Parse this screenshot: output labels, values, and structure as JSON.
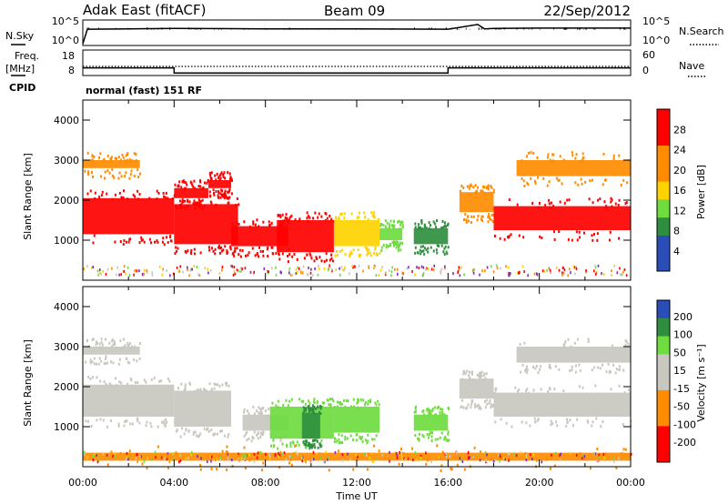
{
  "header": {
    "station": "Adak East (fitACF)",
    "beam": "Beam 09",
    "date": "22/Sep/2012"
  },
  "control_labels": {
    "nsky": "N.Sky",
    "nsearch": "N.Search",
    "freq_line1": "Freq.",
    "freq_line2": "[MHz]",
    "nave": "Nave",
    "cpid": "CPID",
    "cpid_value": "normal (fast) 151 RF",
    "left_top_tick": "10^5",
    "left_bottom_tick": "10^0",
    "right_top_tick": "10^5",
    "right_bottom_tick": "10^0",
    "freq_top_tick": "18",
    "freq_bottom_tick": "8",
    "nave_top_tick": "60",
    "nave_bottom_tick": "0"
  },
  "colors": {
    "red": "#ff0000",
    "orange": "#ff8c00",
    "yellow": "#ffd200",
    "green": "#6fdc3f",
    "darkgreen": "#2f8f3f",
    "blue": "#2a4db8",
    "gray": "#c8c8c0",
    "purple": "#7a2fb0"
  },
  "chart_data": [
    {
      "type": "line",
      "panel": "noise",
      "series": [
        {
          "name": "N.Sky",
          "x_hours": [
            0,
            0.2,
            4,
            8,
            12,
            16,
            17.3,
            17.6,
            18,
            20,
            24
          ],
          "values": [
            0,
            3.6,
            3.8,
            3.7,
            3.7,
            3.6,
            4.8,
            3.7,
            3.8,
            3.9,
            3.9
          ]
        },
        {
          "name": "N.Search"
        }
      ],
      "yscale": "log",
      "ylim_labels": [
        "10^0",
        "10^5"
      ]
    },
    {
      "type": "line",
      "panel": "frequency",
      "series": [
        {
          "name": "Freq.",
          "x_hours": [
            0,
            4,
            4,
            16,
            16,
            24
          ],
          "values": [
            12,
            12,
            8.5,
            8.5,
            12,
            12
          ]
        },
        {
          "name": "Nave"
        }
      ],
      "ylim_freq": [
        8,
        18
      ],
      "ylim_nave": [
        0,
        60
      ]
    },
    {
      "type": "heatmap",
      "panel": "power",
      "ylabel": "Slant Range [km]",
      "xlabel": "Time UT",
      "xlim": [
        0,
        24
      ],
      "ylim": [
        0,
        4500
      ],
      "yticks": [
        1000,
        2000,
        3000,
        4000
      ],
      "xtick_labels": [
        "00:00",
        "04:00",
        "08:00",
        "12:00",
        "16:00",
        "20:00",
        "00:00"
      ],
      "colorbar_label": "Power [dB]",
      "colorbar_ticks": [
        4,
        8,
        12,
        16,
        20,
        24,
        28
      ],
      "clim": [
        0,
        32
      ],
      "regions": [
        {
          "t0": 0,
          "t1": 4,
          "r0": 1150,
          "r1": 2050,
          "value": 30
        },
        {
          "t0": 4,
          "t1": 6.8,
          "r0": 900,
          "r1": 1900,
          "value": 29
        },
        {
          "t0": 6.5,
          "t1": 9,
          "r0": 850,
          "r1": 1350,
          "value": 28
        },
        {
          "t0": 8.5,
          "t1": 11,
          "r0": 700,
          "r1": 1500,
          "value": 27
        },
        {
          "t0": 11,
          "t1": 13,
          "r0": 850,
          "r1": 1500,
          "value": 18
        },
        {
          "t0": 13,
          "t1": 14,
          "r0": 1000,
          "r1": 1300,
          "value": 14
        },
        {
          "t0": 14.5,
          "t1": 16,
          "r0": 900,
          "r1": 1300,
          "value": 10
        },
        {
          "t0": 16.5,
          "t1": 18,
          "r0": 1700,
          "r1": 2200,
          "value": 22
        },
        {
          "t0": 18,
          "t1": 24,
          "r0": 1250,
          "r1": 1850,
          "value": 29
        },
        {
          "t0": 0,
          "t1": 2.5,
          "r0": 2800,
          "r1": 3000,
          "value": 24
        },
        {
          "t0": 4,
          "t1": 5.5,
          "r0": 2050,
          "r1": 2300,
          "value": 29
        },
        {
          "t0": 5.5,
          "t1": 6.5,
          "r0": 2300,
          "r1": 2500,
          "value": 27
        },
        {
          "t0": 19,
          "t1": 24,
          "r0": 2600,
          "r1": 3000,
          "value": 24
        }
      ]
    },
    {
      "type": "heatmap",
      "panel": "velocity",
      "ylabel": "Slant Range [km]",
      "xlabel": "Time UT",
      "xlim": [
        0,
        24
      ],
      "ylim": [
        0,
        4500
      ],
      "yticks": [
        1000,
        2000,
        3000,
        4000
      ],
      "xtick_labels": [
        "00:00",
        "04:00",
        "08:00",
        "12:00",
        "16:00",
        "20:00",
        "00:00"
      ],
      "colorbar_label": "Velocity [m s⁻¹]",
      "colorbar_ticks": [
        200,
        100,
        50,
        15,
        -15,
        -50,
        -100,
        -200
      ],
      "regions": [
        {
          "t0": 0,
          "t1": 4,
          "r0": 1250,
          "r1": 2050,
          "value": 0
        },
        {
          "t0": 4,
          "t1": 6.5,
          "r0": 1000,
          "r1": 1900,
          "value": -10
        },
        {
          "t0": 7,
          "t1": 9,
          "r0": 900,
          "r1": 1300,
          "value": 0
        },
        {
          "t0": 8.2,
          "t1": 11,
          "r0": 700,
          "r1": 1500,
          "value": 40
        },
        {
          "t0": 11,
          "t1": 13,
          "r0": 850,
          "r1": 1500,
          "value": 30
        },
        {
          "t0": 9.6,
          "t1": 10.4,
          "r0": 700,
          "r1": 1350,
          "value": 120
        },
        {
          "t0": 14.5,
          "t1": 16,
          "r0": 900,
          "r1": 1300,
          "value": 35
        },
        {
          "t0": 16.5,
          "t1": 18,
          "r0": 1700,
          "r1": 2200,
          "value": 0
        },
        {
          "t0": 18,
          "t1": 24,
          "r0": 1250,
          "r1": 1850,
          "value": 0
        },
        {
          "t0": 0,
          "t1": 2.5,
          "r0": 2800,
          "r1": 3000,
          "value": 0
        },
        {
          "t0": 19,
          "t1": 24,
          "r0": 2600,
          "r1": 3000,
          "value": 0
        },
        {
          "t0": 0,
          "t1": 24,
          "r0": 150,
          "r1": 350,
          "value": -60
        }
      ]
    }
  ]
}
